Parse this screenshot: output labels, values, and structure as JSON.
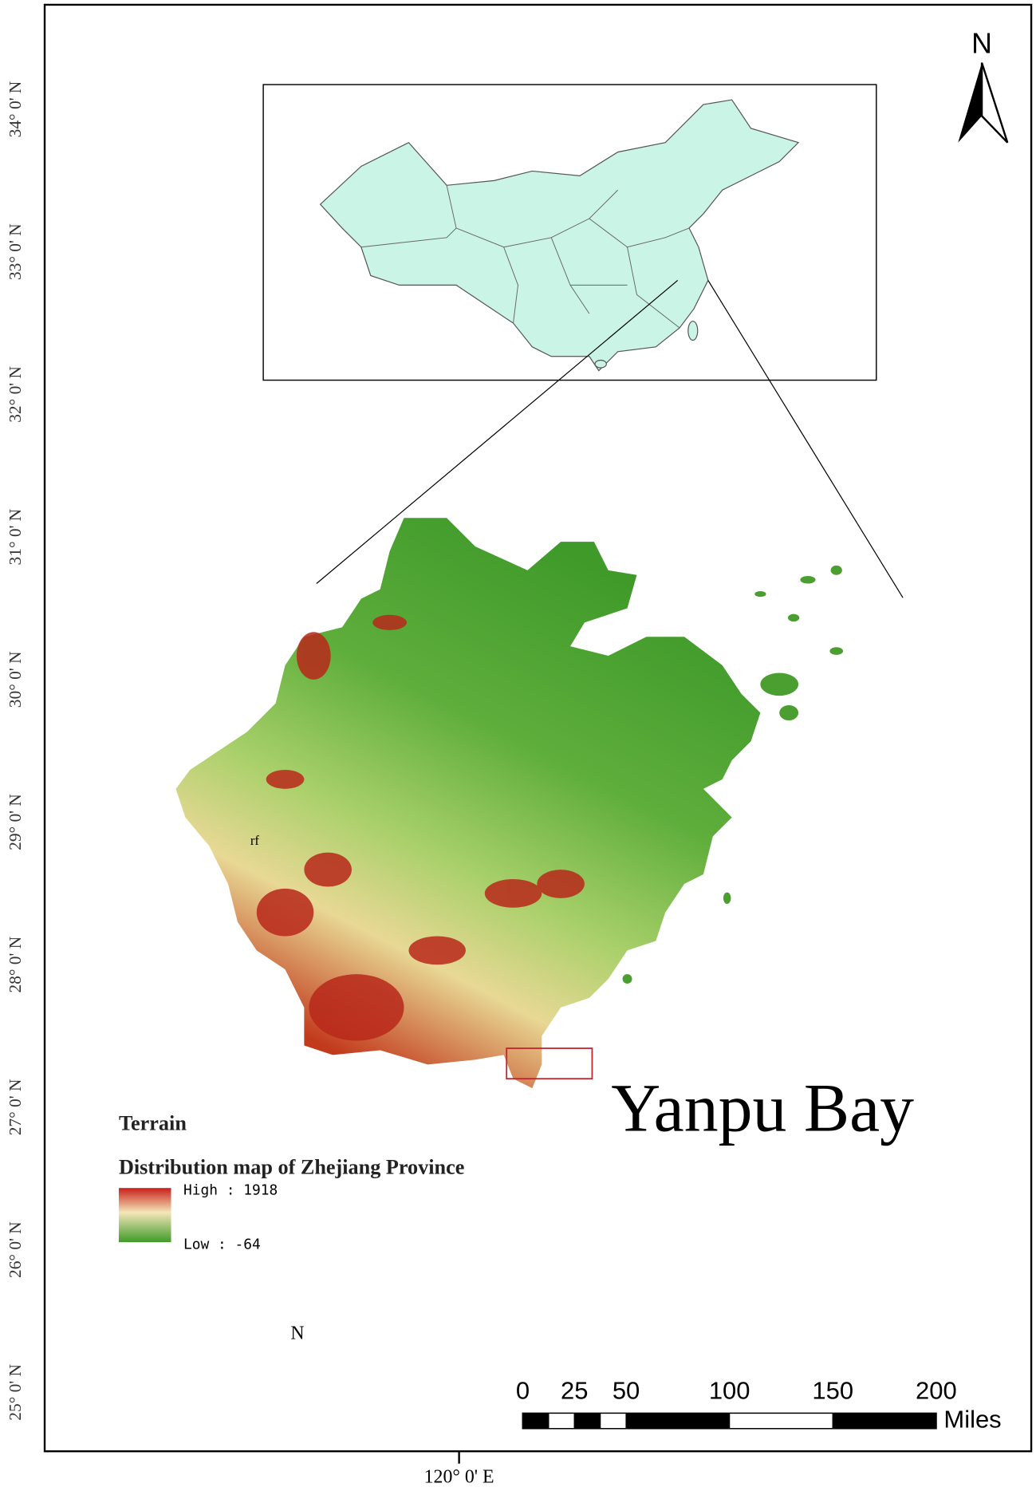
{
  "latitude_labels": [
    "34° 0' N",
    "33° 0' N",
    "32° 0' N",
    "31° 0' N",
    "30° 0' N",
    "29° 0' N",
    "28° 0' N",
    "27° 0' N",
    "26° 0' N",
    "25° 0' N"
  ],
  "longitude_label": "120° 0' E",
  "north_arrow": "N",
  "annotation": "Yanpu Bay",
  "place_label": "rf",
  "stray_label": "N",
  "legend": {
    "title": "Terrain",
    "subtitle": "Distribution map of Zhejiang Province",
    "high": "High : 1918",
    "low": "Low : -64"
  },
  "scale_bar": {
    "ticks": [
      0,
      25,
      50,
      100,
      150,
      200
    ],
    "unit": "Miles"
  }
}
